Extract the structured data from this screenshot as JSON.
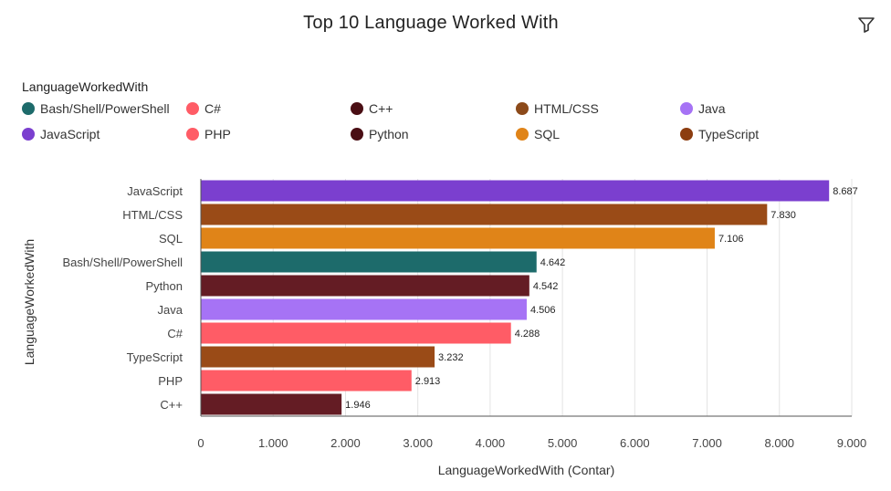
{
  "chart_data": {
    "type": "bar",
    "orientation": "horizontal",
    "title": "Top 10 Language Worked With",
    "xlabel": "LanguageWorkedWith (Contar)",
    "ylabel": "LanguageWorkedWith",
    "legend_title": "LanguageWorkedWith",
    "legend_position": "top",
    "xlim": [
      0,
      9000
    ],
    "x_ticks": [
      0,
      1000,
      2000,
      3000,
      4000,
      5000,
      6000,
      7000,
      8000,
      9000
    ],
    "x_tick_labels": [
      "0",
      "1.000",
      "2.000",
      "3.000",
      "4.000",
      "5.000",
      "6.000",
      "7.000",
      "8.000",
      "9.000"
    ],
    "grid": true,
    "categories": [
      "JavaScript",
      "HTML/CSS",
      "SQL",
      "Bash/Shell/PowerShell",
      "Python",
      "Java",
      "C#",
      "TypeScript",
      "PHP",
      "C++"
    ],
    "values": [
      8687,
      7830,
      7106,
      4642,
      4542,
      4506,
      4288,
      3232,
      2913,
      1946
    ],
    "value_labels": [
      "8.687",
      "7.830",
      "7.106",
      "4.642",
      "4.542",
      "4.506",
      "4.288",
      "3.232",
      "2.913",
      "1.946"
    ],
    "colors": [
      "#7b3fcf",
      "#9a4b17",
      "#e08418",
      "#1d6b6b",
      "#641c24",
      "#a673f5",
      "#ff5c66",
      "#9a4b17",
      "#ff5c66",
      "#641c24"
    ],
    "legend": [
      {
        "label": "Bash/Shell/PowerShell",
        "color": "#1d6b6b"
      },
      {
        "label": "C#",
        "color": "#ff5c66"
      },
      {
        "label": "C++",
        "color": "#4a0e14"
      },
      {
        "label": "HTML/CSS",
        "color": "#8c4a1a"
      },
      {
        "label": "Java",
        "color": "#a673f5"
      },
      {
        "label": "JavaScript",
        "color": "#7b3fcf"
      },
      {
        "label": "PHP",
        "color": "#ff5c66"
      },
      {
        "label": "Python",
        "color": "#4a0e14"
      },
      {
        "label": "SQL",
        "color": "#e08418"
      },
      {
        "label": "TypeScript",
        "color": "#8c3d10"
      }
    ]
  },
  "toolbar": {
    "filter_icon": "filter-icon"
  }
}
